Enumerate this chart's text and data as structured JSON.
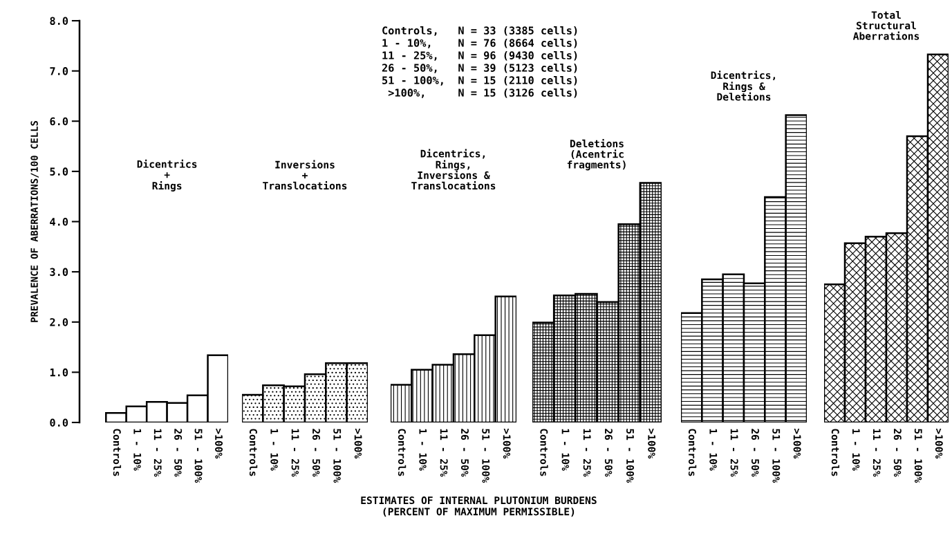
{
  "chart_data": [
    {
      "type": "bar",
      "title": "Dicentrics\n+\nRings",
      "ylabel": "PREVALENCE OF ABERRATIONS/100 CELLS",
      "categories": [
        "Controls",
        "1 - 10%",
        "11 - 25%",
        "26 - 50%",
        "51 - 100%",
        ">100%"
      ],
      "values": [
        0.19,
        0.32,
        0.41,
        0.39,
        0.54,
        1.34
      ],
      "color": "#ffffff",
      "ylim": [
        0,
        8
      ],
      "yticks": [
        {
          "value": 0,
          "label": "0.0"
        },
        {
          "value": 1,
          "label": "1.0"
        },
        {
          "value": 2,
          "label": "2.0"
        },
        {
          "value": 3,
          "label": "3.0"
        },
        {
          "value": 4,
          "label": "4.0"
        },
        {
          "value": 5,
          "label": "5.0"
        },
        {
          "value": 6,
          "label": "6.0"
        },
        {
          "value": 7,
          "label": "7.0"
        },
        {
          "value": 8,
          "label": "8.0"
        }
      ]
    },
    {
      "type": "bar",
      "title": "Inversions\n+\nTranslocations",
      "categories": [
        "Controls",
        "1 - 10%",
        "11 - 25%",
        "26 - 50%",
        "51 - 100%",
        ">100%"
      ],
      "values": [
        0.55,
        0.74,
        0.72,
        0.96,
        1.18,
        1.18
      ],
      "color": "#000000",
      "ylim": [
        0,
        8
      ],
      "tick_labels": "x"
    },
    {
      "type": "bar",
      "title": "Dicentrics,\nRings,\nInversions &\nTranslocations",
      "xlabel": "ESTIMATES OF INTERNAL PLUTONIUM BURDENS\n(PERCENT OF MAXIMUM PERMISSIBLE)",
      "annotations": [
        "Controls,   N = 33 (3385 cells)",
        "1 - 10%,    N = 76 (8664 cells)",
        "11 - 25%,   N = 96 (9430 cells)",
        "26 - 50%,   N = 39 (5123 cells)",
        "51 - 100%,  N = 15 (2110 cells)",
        " >100%,     N = 15 (3126 cells)"
      ],
      "categories": [
        "Controls",
        "1 - 10%",
        "11 - 25%",
        "26 - 50%",
        "51 - 100%",
        ">100%"
      ],
      "values": [
        0.75,
        1.05,
        1.15,
        1.36,
        1.74,
        2.51
      ],
      "color": "#000000",
      "ylim": [
        0,
        8
      ],
      "tick_labels": "x"
    },
    {
      "type": "bar",
      "title": "Deletions\n(Acentric\nfragments)",
      "categories": [
        "Controls",
        "1 - 10%",
        "11 - 25%",
        "26 - 50%",
        "51 - 100%",
        ">100%"
      ],
      "values": [
        1.99,
        2.53,
        2.56,
        2.4,
        3.95,
        4.77
      ],
      "color": "#000000",
      "ylim": [
        0,
        8
      ],
      "tick_labels": "x"
    },
    {
      "type": "bar",
      "title": "Dicentrics,\nRings &\nDeletions",
      "categories": [
        "Controls",
        "1 - 10%",
        "11 - 25%",
        "26 - 50%",
        "51 - 100%",
        ">100%"
      ],
      "values": [
        2.18,
        2.85,
        2.95,
        2.77,
        4.49,
        6.12
      ],
      "color": "#000000",
      "ylim": [
        0,
        8
      ],
      "tick_labels": "x"
    },
    {
      "type": "bar",
      "title": "Total\nStructural\nAberrations",
      "categories": [
        "Controls",
        "1 - 10%",
        "11 - 25%",
        "26 - 50%",
        "51 - 100%",
        ">100%"
      ],
      "values": [
        2.75,
        3.57,
        3.7,
        3.77,
        5.7,
        7.33
      ],
      "color": "#000000",
      "ylim": [
        0,
        8
      ],
      "tick_labels": "x"
    }
  ]
}
